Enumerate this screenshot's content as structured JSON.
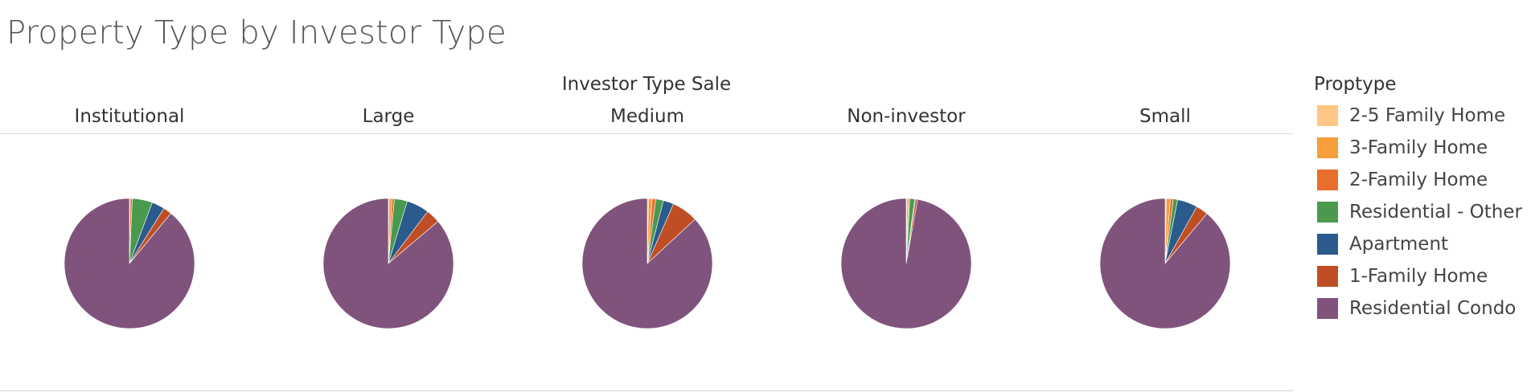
{
  "title": "Property Type by Investor Type",
  "chart_data": {
    "type": "pie",
    "title": "Property Type by Investor Type",
    "column_header": "Investor Type Sale",
    "legend_title": "Proptype",
    "legend_position": "right",
    "categories": [
      "2-5 Family Home",
      "3-Family Home",
      "2-Family Home",
      "Residential - Other",
      "Apartment",
      "1-Family Home",
      "Residential Condo"
    ],
    "colors": [
      "#FFC686",
      "#F69D3E",
      "#E8702B",
      "#499A4E",
      "#2A5B8C",
      "#C04E25",
      "#80537D"
    ],
    "series": [
      {
        "name": "Institutional",
        "values": [
          0.0,
          0.2,
          0.5,
          5.0,
          3.2,
          2.1,
          89.0
        ]
      },
      {
        "name": "Large",
        "values": [
          0.2,
          0.7,
          0.6,
          3.2,
          5.6,
          3.5,
          86.2
        ]
      },
      {
        "name": "Medium",
        "values": [
          0.3,
          0.9,
          0.9,
          1.9,
          2.6,
          6.5,
          86.9
        ]
      },
      {
        "name": "Non-investor",
        "values": [
          0.2,
          0.4,
          0.3,
          1.2,
          0.2,
          0.5,
          97.2
        ]
      },
      {
        "name": "Small",
        "values": [
          0.3,
          1.0,
          0.7,
          1.1,
          5.0,
          3.0,
          88.9
        ]
      }
    ]
  }
}
